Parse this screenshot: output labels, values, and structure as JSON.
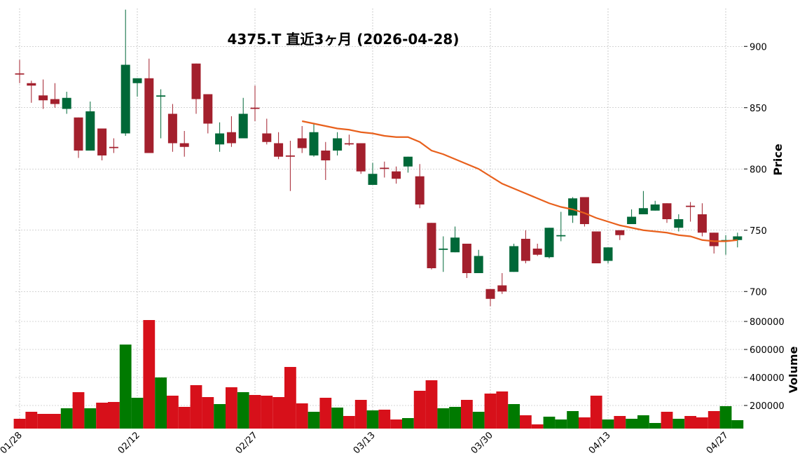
{
  "chart_data": [
    {
      "type": "candlestick",
      "title": "4375.T  直近3ヶ月  (2026-04-28)",
      "ylabel": "Price",
      "categories": [
        "01/28",
        null,
        null,
        null,
        null,
        null,
        null,
        null,
        null,
        null,
        "02/12",
        null,
        null,
        null,
        null,
        null,
        null,
        null,
        null,
        null,
        "02/27",
        null,
        null,
        null,
        null,
        null,
        null,
        null,
        null,
        null,
        "03/13",
        null,
        null,
        null,
        null,
        null,
        null,
        null,
        null,
        null,
        "03/30",
        null,
        null,
        null,
        null,
        null,
        null,
        null,
        null,
        null,
        "04/13",
        null,
        null,
        null,
        null,
        null,
        null,
        null,
        null,
        null,
        "04/27",
        null
      ],
      "open": [
        878,
        870,
        860,
        857,
        849,
        842,
        815,
        833,
        818,
        829,
        870,
        874,
        859,
        845,
        821,
        886,
        861,
        820,
        830,
        825,
        850,
        829,
        821,
        811,
        825,
        811,
        815,
        815,
        821,
        821,
        787,
        801,
        798,
        802,
        794,
        756,
        734,
        732,
        739,
        715,
        702,
        705,
        716,
        743,
        735,
        728,
        745,
        762,
        777,
        749,
        725,
        750,
        755,
        763,
        766,
        772,
        752,
        770,
        763,
        748,
        741,
        742
      ],
      "high": [
        889,
        872,
        873,
        870,
        863,
        842,
        855,
        833,
        825,
        930,
        874,
        890,
        865,
        853,
        831,
        886,
        861,
        838,
        843,
        858,
        868,
        841,
        830,
        823,
        835,
        837,
        822,
        830,
        828,
        821,
        805,
        806,
        802,
        810,
        804,
        756,
        745,
        753,
        739,
        734,
        702,
        715,
        739,
        750,
        739,
        752,
        765,
        777,
        777,
        749,
        736,
        750,
        767,
        782,
        774,
        772,
        763,
        773,
        772,
        748,
        746,
        748
      ],
      "low": [
        870,
        854,
        849,
        850,
        845,
        809,
        815,
        807,
        813,
        827,
        859,
        813,
        825,
        814,
        810,
        845,
        829,
        814,
        818,
        825,
        839,
        820,
        808,
        782,
        813,
        810,
        791,
        811,
        819,
        796,
        787,
        793,
        788,
        797,
        768,
        718,
        716,
        732,
        711,
        715,
        688,
        698,
        716,
        723,
        729,
        727,
        741,
        756,
        753,
        723,
        723,
        742,
        755,
        763,
        766,
        756,
        749,
        757,
        745,
        731,
        730,
        736
      ],
      "close": [
        877,
        868,
        856,
        853,
        858,
        815,
        847,
        811,
        817,
        885,
        874,
        813,
        860,
        821,
        818,
        857,
        837,
        829,
        821,
        845,
        849,
        822,
        810,
        810,
        817,
        830,
        807,
        825,
        820,
        798,
        796,
        800,
        792,
        810,
        771,
        719,
        735,
        744,
        715,
        729,
        694,
        700,
        737,
        725,
        730,
        752,
        746,
        776,
        755,
        723,
        736,
        746,
        761,
        768,
        771,
        759,
        759,
        769,
        748,
        737,
        742,
        745
      ],
      "up_color": "#006838",
      "down_color": "#a3202d",
      "ma": {
        "color": "#e8601c",
        "values": [
          null,
          null,
          null,
          null,
          null,
          null,
          null,
          null,
          null,
          null,
          null,
          null,
          null,
          null,
          null,
          null,
          null,
          null,
          null,
          null,
          null,
          null,
          null,
          null,
          839,
          837,
          835,
          833,
          832,
          830,
          829,
          827,
          826,
          826,
          822,
          815,
          812,
          808,
          804,
          800,
          794,
          788,
          784,
          780,
          776,
          772,
          769,
          767,
          764,
          760,
          757,
          754,
          752,
          750,
          749,
          748,
          746,
          745,
          742,
          741,
          741,
          742
        ]
      },
      "ylim": [
        687,
        931
      ],
      "yticks": [
        700,
        750,
        800,
        850,
        900
      ],
      "grid": true
    },
    {
      "type": "bar",
      "ylabel": "Volume",
      "values": [
        105000,
        155000,
        140000,
        140000,
        180000,
        295000,
        180000,
        220000,
        225000,
        635000,
        255000,
        810000,
        400000,
        270000,
        190000,
        345000,
        260000,
        210000,
        330000,
        295000,
        275000,
        270000,
        260000,
        475000,
        215000,
        155000,
        255000,
        185000,
        125000,
        240000,
        165000,
        170000,
        100000,
        110000,
        305000,
        380000,
        180000,
        190000,
        240000,
        155000,
        285000,
        300000,
        210000,
        130000,
        65000,
        120000,
        100000,
        160000,
        115000,
        270000,
        100000,
        125000,
        105000,
        130000,
        75000,
        155000,
        105000,
        125000,
        115000,
        160000,
        195000,
        95000
      ],
      "up_color": "#007a00",
      "down_color": "#d7101a",
      "ylim": [
        35000,
        895000
      ],
      "yticks": [
        200000,
        400000,
        600000,
        800000
      ],
      "grid": true
    }
  ]
}
